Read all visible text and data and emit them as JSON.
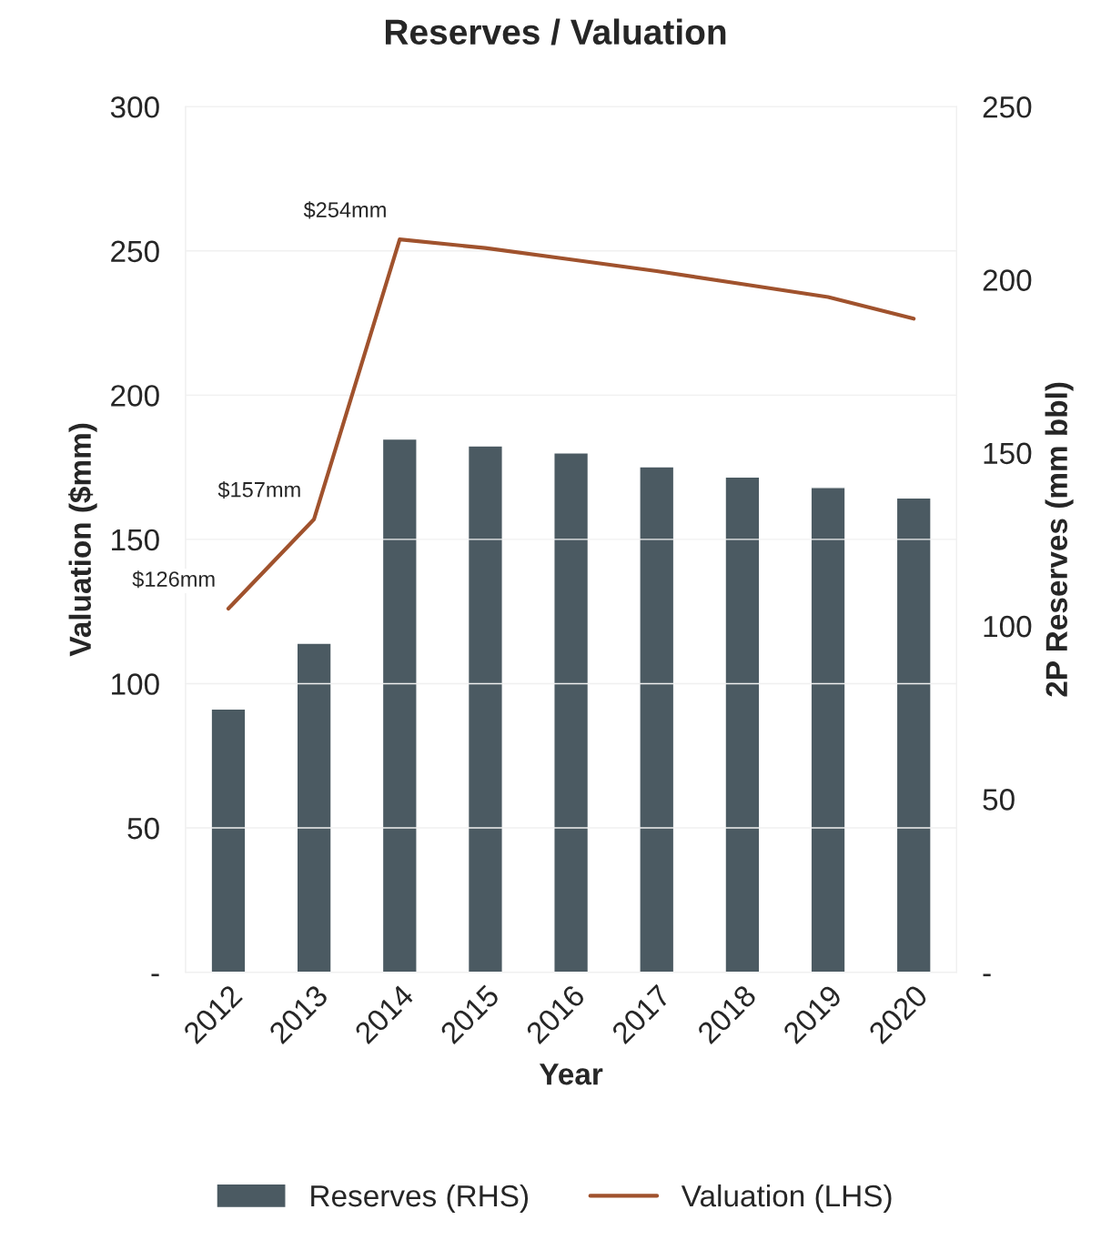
{
  "chart_data": {
    "type": "bar",
    "title": "Reserves / Valuation",
    "xlabel": "Year",
    "ylabel": "Valuation ($mm)",
    "y2label": "2P Reserves (mm bbl)",
    "categories": [
      "2012",
      "2013",
      "2014",
      "2015",
      "2016",
      "2017",
      "2018",
      "2019",
      "2020"
    ],
    "series": [
      {
        "name": "Reserves (RHS)",
        "axis": "y2",
        "color": "#4b5a62",
        "values": [
          76,
          95,
          154,
          152,
          150,
          146,
          143,
          140,
          137
        ]
      },
      {
        "name": "Valuation (LHS)",
        "type": "line",
        "axis": "y",
        "color": "#a0522d",
        "values": [
          126,
          157,
          254,
          251,
          247,
          243,
          238.5,
          234,
          226.5
        ],
        "value_labels": [
          "$126mm",
          "$157mm",
          "$254mm",
          null,
          null,
          null,
          null,
          null,
          null
        ]
      }
    ],
    "ylim": [
      0,
      300
    ],
    "yticks": [
      {
        "value": 0,
        "label": "-"
      },
      50,
      100,
      150,
      200,
      250,
      300
    ],
    "y2lim": [
      0,
      250
    ],
    "y2ticks": [
      {
        "value": 0,
        "label": "-"
      },
      50,
      100,
      150,
      200,
      250
    ],
    "grid": "y",
    "legend": "bottom"
  }
}
